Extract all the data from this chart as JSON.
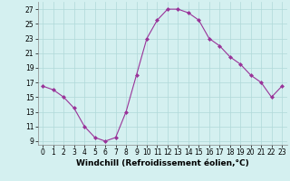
{
  "x": [
    0,
    1,
    2,
    3,
    4,
    5,
    6,
    7,
    8,
    9,
    10,
    11,
    12,
    13,
    14,
    15,
    16,
    17,
    18,
    19,
    20,
    21,
    22,
    23
  ],
  "y": [
    16.5,
    16.0,
    15.0,
    13.5,
    11.0,
    9.5,
    9.0,
    9.5,
    13.0,
    18.0,
    23.0,
    25.5,
    27.0,
    27.0,
    26.5,
    25.5,
    23.0,
    22.0,
    20.5,
    19.5,
    18.0,
    17.0,
    15.0,
    16.5
  ],
  "line_color": "#993399",
  "marker": "D",
  "markersize": 2.0,
  "linewidth": 0.8,
  "xlabel": "Windchill (Refroidissement éolien,°C)",
  "xlabel_fontsize": 6.5,
  "bg_color": "#d4f0f0",
  "grid_color": "#b0d8d8",
  "yticks": [
    9,
    11,
    13,
    15,
    17,
    19,
    21,
    23,
    25,
    27
  ],
  "xticks": [
    0,
    1,
    2,
    3,
    4,
    5,
    6,
    7,
    8,
    9,
    10,
    11,
    12,
    13,
    14,
    15,
    16,
    17,
    18,
    19,
    20,
    21,
    22,
    23
  ],
  "xlim": [
    -0.5,
    23.5
  ],
  "ylim": [
    8.5,
    28.0
  ],
  "tick_fontsize": 5.5,
  "spine_color": "#888888"
}
